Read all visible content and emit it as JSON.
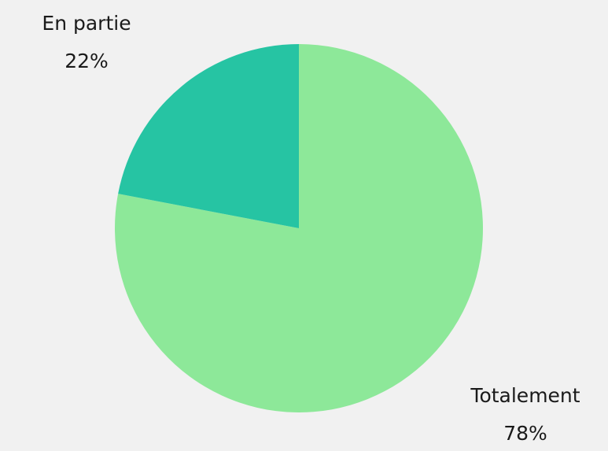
{
  "chart_data": {
    "type": "pie",
    "start_angle_deg": 0,
    "direction": "clockwise",
    "slices": [
      {
        "label": "Totalement",
        "value": 78,
        "value_label": "78%",
        "color": "#8de899"
      },
      {
        "label": "En partie",
        "value": 22,
        "value_label": "22%",
        "color": "#26c4a3"
      }
    ]
  }
}
